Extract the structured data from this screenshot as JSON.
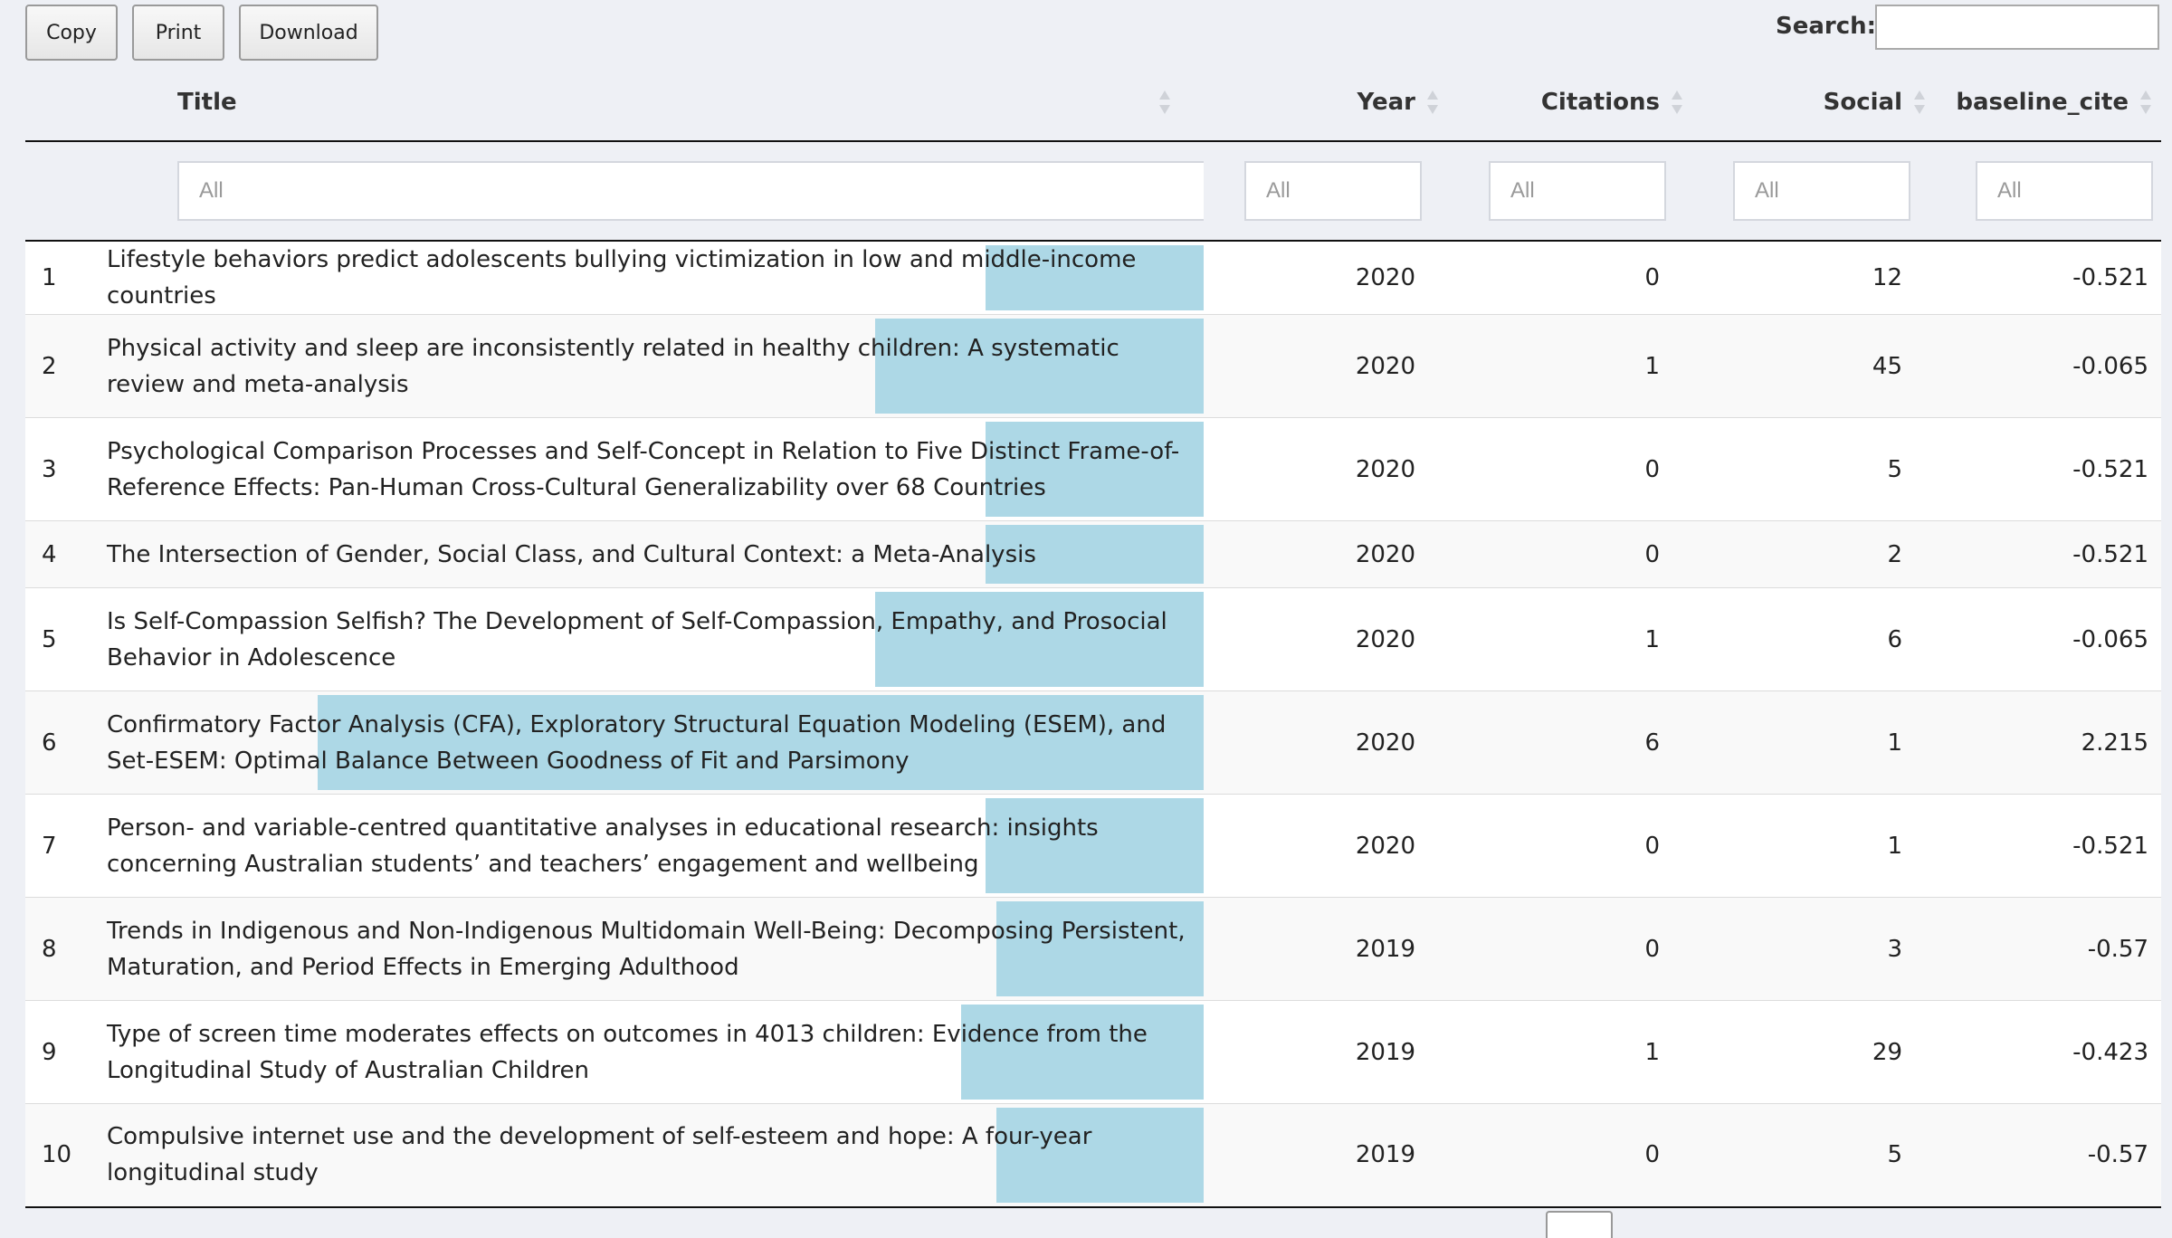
{
  "toolbar": {
    "copy_label": "Copy",
    "print_label": "Print",
    "download_label": "Download"
  },
  "search": {
    "label": "Search:",
    "value": ""
  },
  "columns": {
    "title": "Title",
    "year": "Year",
    "citations": "Citations",
    "social": "Social",
    "baseline": "baseline_cite"
  },
  "filters": {
    "title": "All",
    "year": "All",
    "citations": "All",
    "social": "All",
    "baseline": "All"
  },
  "bar_color": "#add8e6",
  "rows": [
    {
      "idx": "1",
      "title": "Lifestyle behaviors predict adolescents bullying victimization in low and middle-income countries",
      "year": "2020",
      "citations": "0",
      "social": "12",
      "baseline": "-0.521",
      "bar_fraction": 0.194,
      "height": "one"
    },
    {
      "idx": "2",
      "title": "Physical activity and sleep are inconsistently related in healthy children: A systematic review and meta-analysis",
      "year": "2020",
      "citations": "1",
      "social": "45",
      "baseline": "-0.065",
      "bar_fraction": 0.292,
      "height": "two"
    },
    {
      "idx": "3",
      "title": "Psychological Comparison Processes and Self-Concept in Relation to Five Distinct Frame-of-Reference Effects: Pan-Human Cross-Cultural Generalizability over 68 Countries",
      "year": "2020",
      "citations": "0",
      "social": "5",
      "baseline": "-0.521",
      "bar_fraction": 0.194,
      "height": "two"
    },
    {
      "idx": "4",
      "title": "The Intersection of Gender, Social Class, and Cultural Context: a Meta-Analysis",
      "year": "2020",
      "citations": "0",
      "social": "2",
      "baseline": "-0.521",
      "bar_fraction": 0.194,
      "height": "one"
    },
    {
      "idx": "5",
      "title": "Is Self-Compassion Selfish? The Development of Self-Compassion, Empathy, and Prosocial Behavior in Adolescence",
      "year": "2020",
      "citations": "1",
      "social": "6",
      "baseline": "-0.065",
      "bar_fraction": 0.292,
      "height": "two"
    },
    {
      "idx": "6",
      "title": "Confirmatory Factor Analysis (CFA), Exploratory Structural Equation Modeling (ESEM), and Set-ESEM: Optimal Balance Between Goodness of Fit and Parsimony",
      "year": "2020",
      "citations": "6",
      "social": "1",
      "baseline": "2.215",
      "bar_fraction": 0.788,
      "height": "two"
    },
    {
      "idx": "7",
      "title": "Person- and variable-centred quantitative analyses in educational research: insights concerning Australian students’ and teachers’ engagement and wellbeing",
      "year": "2020",
      "citations": "0",
      "social": "1",
      "baseline": "-0.521",
      "bar_fraction": 0.194,
      "height": "two"
    },
    {
      "idx": "8",
      "title": "Trends in Indigenous and Non-Indigenous Multidomain Well-Being: Decomposing Persistent, Maturation, and Period Effects in Emerging Adulthood",
      "year": "2019",
      "citations": "0",
      "social": "3",
      "baseline": "-0.57",
      "bar_fraction": 0.184,
      "height": "two"
    },
    {
      "idx": "9",
      "title": "Type of screen time moderates effects on outcomes in 4013 children: Evidence from the Longitudinal Study of Australian Children",
      "year": "2019",
      "citations": "1",
      "social": "29",
      "baseline": "-0.423",
      "bar_fraction": 0.216,
      "height": "two"
    },
    {
      "idx": "10",
      "title": "Compulsive internet use and the development of self-esteem and hope: A four-year longitudinal study",
      "year": "2019",
      "citations": "0",
      "social": "5",
      "baseline": "-0.57",
      "bar_fraction": 0.184,
      "height": "two"
    }
  ]
}
